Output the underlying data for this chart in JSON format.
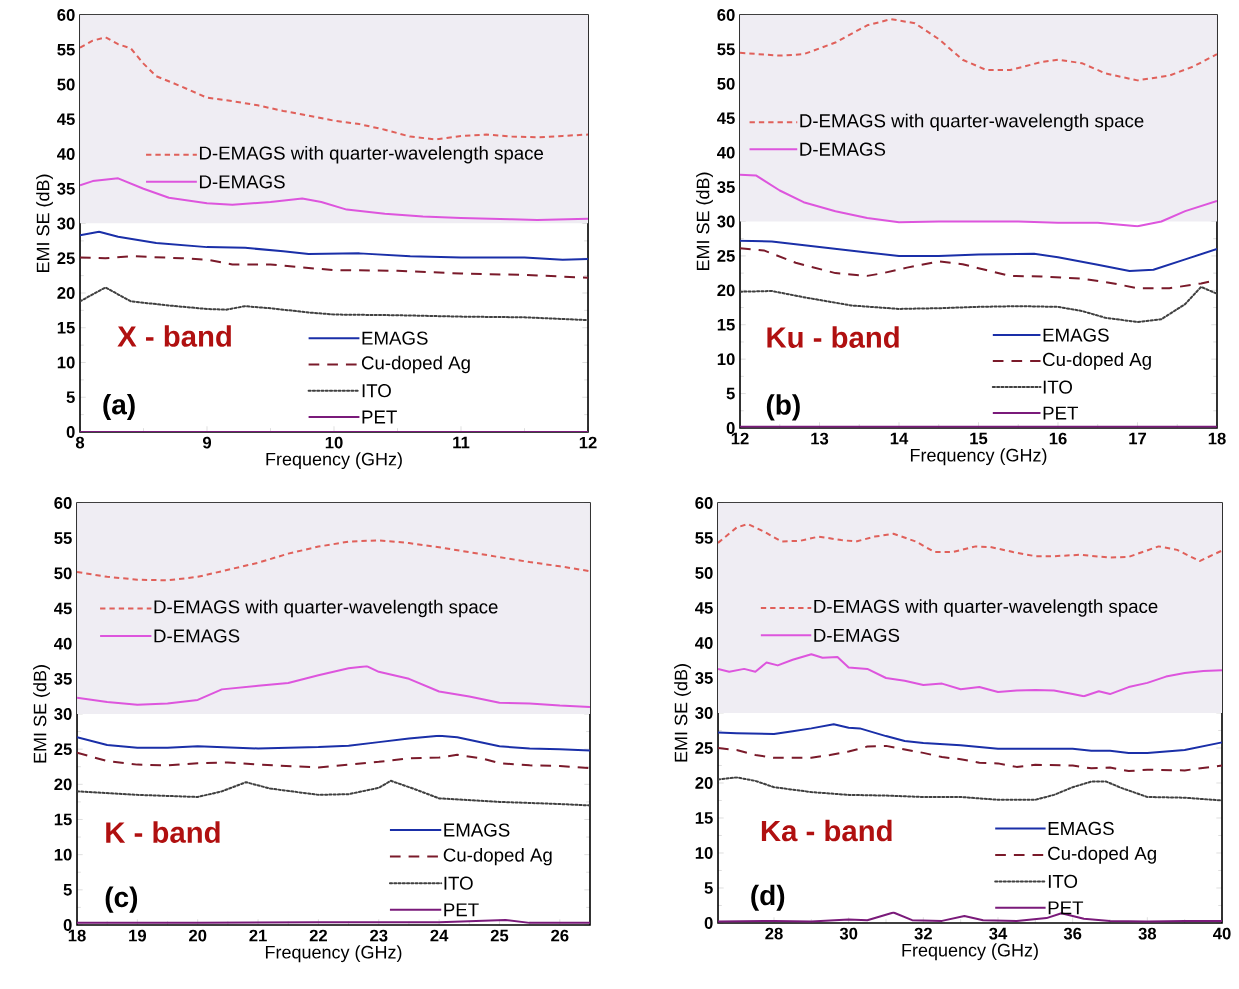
{
  "chart_data": [
    {
      "type": "line",
      "xlabel": "Frequency (GHz)",
      "ylabel": "EMI SE (dB)",
      "xlim": [
        8,
        12
      ],
      "ylim": [
        0,
        60
      ],
      "xticks": [
        8,
        9,
        10,
        11,
        12
      ],
      "yticks": [
        0,
        5,
        10,
        15,
        20,
        25,
        30,
        35,
        40,
        45,
        50,
        55,
        60
      ],
      "bands": [
        {
          "axis": "y",
          "from": 30,
          "to": 60,
          "color": "#efedf3"
        }
      ],
      "annotations": [
        "X - band",
        "(a)"
      ],
      "legend": "bottom right",
      "series": [
        {
          "name": "D-EMAGS with quarter-wavelength space",
          "color": "#e0605a",
          "line_style": "dashed",
          "x": [
            8,
            8.1,
            8.2,
            8.3,
            8.4,
            8.5,
            8.6,
            8.8,
            9.0,
            9.2,
            9.4,
            9.6,
            9.8,
            10,
            10.2,
            10.4,
            10.6,
            10.8,
            11,
            11.2,
            11.4,
            11.6,
            11.8,
            12
          ],
          "values": [
            55.3,
            56.3,
            56.8,
            55.8,
            55.2,
            53,
            51.2,
            49.7,
            48.1,
            47.6,
            47,
            46.2,
            45.5,
            44.8,
            44.3,
            43.5,
            42.5,
            42.1,
            42.6,
            42.8,
            42.5,
            42.4,
            42.6,
            42.8
          ]
        },
        {
          "name": "D-EMAGS",
          "color": "#dd55dd",
          "line_style": "solid",
          "x": [
            8,
            8.1,
            8.3,
            8.5,
            8.7,
            9,
            9.2,
            9.5,
            9.75,
            9.9,
            10.1,
            10.4,
            10.7,
            11,
            11.4,
            11.6,
            12
          ],
          "values": [
            35.5,
            36.1,
            36.5,
            35,
            33.7,
            32.9,
            32.7,
            33.1,
            33.6,
            33.1,
            32,
            31.4,
            31,
            30.8,
            30.6,
            30.5,
            30.7
          ]
        },
        {
          "name": "EMAGS",
          "color": "#1a2fa8",
          "line_style": "solid",
          "x": [
            8,
            8.15,
            8.3,
            8.6,
            9,
            9.3,
            9.6,
            9.8,
            10.2,
            10.6,
            11,
            11.5,
            11.8,
            12
          ],
          "values": [
            28.3,
            28.8,
            28.1,
            27.2,
            26.6,
            26.5,
            26,
            25.6,
            25.7,
            25.3,
            25.1,
            25.1,
            24.8,
            24.9
          ]
        },
        {
          "name": "Cu-doped Ag",
          "color": "#7a1a2a",
          "line_style": "dashed",
          "x": [
            8,
            8.2,
            8.4,
            8.8,
            9,
            9.2,
            9.5,
            9.8,
            10,
            10.5,
            11,
            11.5,
            12
          ],
          "values": [
            25.1,
            25,
            25.3,
            25,
            24.8,
            24.1,
            24.1,
            23.6,
            23.3,
            23.2,
            22.8,
            22.6,
            22.2
          ]
        },
        {
          "name": "ITO",
          "color": "#404040",
          "line_style": "dotted",
          "x": [
            8,
            8.1,
            8.2,
            8.3,
            8.4,
            8.7,
            9,
            9.15,
            9.3,
            9.5,
            9.8,
            10,
            10.5,
            11,
            11.5,
            12
          ],
          "values": [
            18.8,
            19.8,
            20.8,
            19.8,
            18.8,
            18.2,
            17.7,
            17.6,
            18.1,
            17.8,
            17.2,
            16.9,
            16.8,
            16.6,
            16.5,
            16.1
          ]
        },
        {
          "name": "PET",
          "color": "#7a1a7a",
          "line_style": "solid",
          "x": [
            8,
            9,
            10,
            11,
            12
          ],
          "values": [
            0,
            0,
            0,
            0,
            0
          ]
        }
      ]
    },
    {
      "type": "line",
      "xlabel": "Frequency (GHz)",
      "ylabel": "EMI SE (dB)",
      "xlim": [
        12,
        18
      ],
      "ylim": [
        0,
        60
      ],
      "xticks": [
        12,
        13,
        14,
        15,
        16,
        17,
        18
      ],
      "yticks": [
        0,
        5,
        10,
        15,
        20,
        25,
        30,
        35,
        40,
        45,
        50,
        55,
        60
      ],
      "bands": [
        {
          "axis": "y",
          "from": 30,
          "to": 60,
          "color": "#efedf3"
        }
      ],
      "annotations": [
        "Ku - band",
        "(b)"
      ],
      "legend": "bottom left",
      "series": [
        {
          "name": "D-EMAGS with quarter-wavelength space",
          "color": "#e0605a",
          "line_style": "dashed",
          "x": [
            12,
            12.5,
            12.8,
            13.2,
            13.6,
            13.9,
            14.2,
            14.5,
            14.8,
            15.1,
            15.4,
            15.8,
            16,
            16.3,
            16.6,
            17,
            17.4,
            17.7,
            18
          ],
          "values": [
            54.5,
            54.1,
            54.3,
            56,
            58.5,
            59.4,
            58.8,
            56.5,
            53.5,
            52,
            52,
            53.2,
            53.5,
            53,
            51.5,
            50.5,
            51.2,
            52.5,
            54.3
          ]
        },
        {
          "name": "D-EMAGS",
          "color": "#dd55dd",
          "line_style": "solid",
          "x": [
            12,
            12.2,
            12.5,
            12.8,
            13.2,
            13.6,
            14,
            14.5,
            15,
            15.5,
            16,
            16.5,
            17,
            17.3,
            17.6,
            18
          ],
          "values": [
            36.8,
            36.7,
            34.5,
            32.8,
            31.5,
            30.5,
            29.9,
            30,
            30,
            30,
            29.8,
            29.8,
            29.3,
            30,
            31.5,
            33
          ]
        },
        {
          "name": "EMAGS",
          "color": "#1a2fa8",
          "line_style": "solid",
          "x": [
            12,
            12.4,
            13,
            13.6,
            14,
            14.5,
            15,
            15.7,
            16,
            16.5,
            16.9,
            17.2,
            17.6,
            18
          ],
          "values": [
            27.2,
            27.1,
            26.3,
            25.5,
            25,
            25,
            25.2,
            25.3,
            24.8,
            23.7,
            22.8,
            23,
            24.5,
            26
          ]
        },
        {
          "name": "Cu-doped Ag",
          "color": "#7a1a2a",
          "line_style": "dashed",
          "x": [
            12,
            12.3,
            12.7,
            13.2,
            13.6,
            13.8,
            14.1,
            14.5,
            14.8,
            15,
            15.4,
            15.8,
            16.3,
            16.7,
            17,
            17.4,
            17.8,
            18
          ],
          "values": [
            26.1,
            25.8,
            24,
            22.5,
            22.1,
            22.5,
            23.3,
            24.2,
            23.8,
            23.2,
            22.1,
            22,
            21.7,
            21,
            20.3,
            20.3,
            21,
            21.5
          ]
        },
        {
          "name": "ITO",
          "color": "#404040",
          "line_style": "dotted",
          "x": [
            12,
            12.4,
            12.8,
            13.4,
            14,
            14.5,
            15,
            15.5,
            16,
            16.3,
            16.6,
            17,
            17.3,
            17.6,
            17.8,
            18
          ],
          "values": [
            19.8,
            19.9,
            19,
            17.8,
            17.3,
            17.4,
            17.6,
            17.7,
            17.6,
            17,
            16,
            15.4,
            15.8,
            18,
            20.5,
            19.5
          ]
        },
        {
          "name": "PET",
          "color": "#7a1a7a",
          "line_style": "solid",
          "x": [
            12,
            14,
            16,
            18
          ],
          "values": [
            0.2,
            0.2,
            0.2,
            0.2
          ]
        }
      ]
    },
    {
      "type": "line",
      "xlabel": "Frequency (GHz)",
      "ylabel": "EMI SE (dB)",
      "xlim": [
        18,
        26.5
      ],
      "ylim": [
        0,
        60
      ],
      "xticks": [
        18,
        19,
        20,
        21,
        22,
        23,
        24,
        25,
        26
      ],
      "yticks": [
        0,
        5,
        10,
        15,
        20,
        25,
        30,
        35,
        40,
        45,
        50,
        55,
        60
      ],
      "bands": [
        {
          "axis": "y",
          "from": 30,
          "to": 60,
          "color": "#efedf3"
        }
      ],
      "annotations": [
        "K - band",
        "(c)"
      ],
      "legend": "bottom right",
      "series": [
        {
          "name": "D-EMAGS with quarter-wavelength space",
          "color": "#e0605a",
          "line_style": "dashed",
          "x": [
            18,
            18.5,
            19,
            19.5,
            20,
            20.5,
            21,
            21.5,
            22,
            22.5,
            23,
            23.5,
            24,
            24.5,
            25,
            25.5,
            26,
            26.5
          ],
          "values": [
            50.2,
            49.5,
            49.1,
            49,
            49.5,
            50.5,
            51.5,
            52.8,
            53.8,
            54.5,
            54.7,
            54.3,
            53.7,
            53,
            52.3,
            51.6,
            51,
            50.3
          ]
        },
        {
          "name": "D-EMAGS",
          "color": "#dd55dd",
          "line_style": "solid",
          "x": [
            18,
            18.5,
            19,
            19.5,
            20,
            20.4,
            21,
            21.5,
            22,
            22.5,
            22.8,
            23,
            23.5,
            24,
            24.5,
            25,
            25.5,
            26,
            26.5
          ],
          "values": [
            32.3,
            31.7,
            31.3,
            31.5,
            32,
            33.5,
            34,
            34.4,
            35.5,
            36.5,
            36.8,
            36,
            35,
            33.2,
            32.5,
            31.6,
            31.5,
            31.2,
            31
          ]
        },
        {
          "name": "EMAGS",
          "color": "#1a2fa8",
          "line_style": "solid",
          "x": [
            18,
            18.5,
            19,
            19.5,
            20,
            21,
            22,
            22.5,
            23,
            23.5,
            24,
            24.3,
            25,
            25.5,
            26,
            26.5
          ],
          "values": [
            26.7,
            25.6,
            25.2,
            25.2,
            25.4,
            25.1,
            25.3,
            25.5,
            26,
            26.5,
            26.9,
            26.7,
            25.4,
            25.1,
            25,
            24.8
          ]
        },
        {
          "name": "Cu-doped Ag",
          "color": "#7a1a2a",
          "line_style": "dashed",
          "x": [
            18,
            18.5,
            19,
            19.5,
            20,
            20.5,
            21,
            22,
            22.5,
            23,
            23.5,
            24,
            24.3,
            24.7,
            25,
            25.5,
            26,
            26.5
          ],
          "values": [
            24.5,
            23.3,
            22.8,
            22.7,
            23,
            23.1,
            22.8,
            22.4,
            22.8,
            23.2,
            23.7,
            23.8,
            24.2,
            23.7,
            23,
            22.7,
            22.6,
            22.3
          ]
        },
        {
          "name": "ITO",
          "color": "#404040",
          "line_style": "dotted",
          "x": [
            18,
            19,
            20,
            20.4,
            20.8,
            21.2,
            22,
            22.5,
            23,
            23.2,
            23.6,
            24,
            25,
            26,
            26.5
          ],
          "values": [
            19,
            18.5,
            18.2,
            19,
            20.3,
            19.4,
            18.5,
            18.6,
            19.5,
            20.5,
            19.3,
            18,
            17.5,
            17.2,
            17
          ]
        },
        {
          "name": "PET",
          "color": "#7a1a7a",
          "line_style": "solid",
          "x": [
            18,
            20,
            22,
            23,
            24,
            25.1,
            25.5,
            26.5
          ],
          "values": [
            0.3,
            0.3,
            0.4,
            0.4,
            0.4,
            0.7,
            0.3,
            0.3
          ]
        }
      ]
    },
    {
      "type": "line",
      "xlabel": "Frequency (GHz)",
      "ylabel": "EMI SE (dB)",
      "xlim": [
        26.5,
        40
      ],
      "ylim": [
        0,
        60
      ],
      "xticks": [
        28,
        30,
        32,
        34,
        36,
        38,
        40
      ],
      "yticks": [
        0,
        5,
        10,
        15,
        20,
        25,
        30,
        35,
        40,
        45,
        50,
        55,
        60
      ],
      "bands": [
        {
          "axis": "y",
          "from": 30,
          "to": 60,
          "color": "#efedf3"
        }
      ],
      "annotations": [
        "Ka - band",
        "(d)"
      ],
      "legend": "bottom right",
      "series": [
        {
          "name": "D-EMAGS with quarter-wavelength space",
          "color": "#e0605a",
          "line_style": "dashed",
          "x": [
            26.5,
            27,
            27.3,
            27.7,
            28.2,
            28.7,
            29.2,
            29.8,
            30.2,
            30.7,
            31.2,
            31.8,
            32.3,
            32.8,
            33.4,
            33.8,
            34.4,
            35,
            35.5,
            36.2,
            37,
            37.5,
            38.3,
            38.8,
            39.4,
            40
          ],
          "values": [
            54.3,
            56.5,
            57,
            56,
            54.5,
            54.6,
            55.2,
            54.7,
            54.5,
            55.2,
            55.6,
            54.5,
            53,
            53,
            53.8,
            53.7,
            53,
            52.4,
            52.4,
            52.6,
            52.2,
            52.3,
            53.8,
            53.3,
            51.7,
            53.2
          ]
        },
        {
          "name": "D-EMAGS",
          "color": "#dd55dd",
          "line_style": "solid",
          "x": [
            26.5,
            26.8,
            27.2,
            27.5,
            27.8,
            28.1,
            28.5,
            29,
            29.3,
            29.7,
            30,
            30.5,
            31,
            31.5,
            32,
            32.5,
            33,
            33.5,
            34,
            34.5,
            35,
            35.5,
            36,
            36.3,
            36.7,
            37,
            37.5,
            38,
            38.5,
            39,
            39.5,
            40
          ],
          "values": [
            36.3,
            35.9,
            36.3,
            35.9,
            37.2,
            36.8,
            37.6,
            38.4,
            37.9,
            38,
            36.5,
            36.3,
            35,
            34.6,
            34,
            34.2,
            33.4,
            33.7,
            33,
            33.2,
            33.3,
            33.2,
            32.7,
            32.4,
            33.1,
            32.7,
            33.7,
            34.3,
            35.2,
            35.7,
            36,
            36.1
          ]
        },
        {
          "name": "EMAGS",
          "color": "#1a2fa8",
          "line_style": "solid",
          "x": [
            26.5,
            27,
            28,
            28.5,
            29,
            29.6,
            30,
            30.3,
            31,
            31.5,
            32,
            33,
            34,
            35,
            36,
            36.5,
            37,
            37.5,
            38,
            39,
            40
          ],
          "values": [
            27.2,
            27.1,
            27,
            27.4,
            27.8,
            28.4,
            27.9,
            27.8,
            26.7,
            26,
            25.7,
            25.4,
            24.9,
            24.9,
            24.9,
            24.6,
            24.6,
            24.3,
            24.3,
            24.7,
            25.8
          ]
        },
        {
          "name": "Cu-doped Ag",
          "color": "#7a1a2a",
          "line_style": "dashed",
          "x": [
            26.5,
            27,
            27.5,
            28,
            29,
            29.5,
            30,
            30.5,
            31,
            32,
            32.5,
            33,
            33.5,
            34,
            34.5,
            35,
            36,
            36.5,
            37,
            37.5,
            38,
            39,
            40
          ],
          "values": [
            25,
            24.7,
            24,
            23.6,
            23.6,
            24,
            24.5,
            25.2,
            25.3,
            24.3,
            23.7,
            23.4,
            22.9,
            22.8,
            22.3,
            22.6,
            22.5,
            22.1,
            22.2,
            21.7,
            21.9,
            21.8,
            22.5
          ]
        },
        {
          "name": "ITO",
          "color": "#404040",
          "line_style": "dotted",
          "x": [
            26.5,
            27,
            27.5,
            28,
            29,
            30,
            31,
            32,
            33,
            34,
            35,
            35.5,
            36,
            36.5,
            36.9,
            37.3,
            38,
            39,
            40
          ],
          "values": [
            20.5,
            20.8,
            20.3,
            19.4,
            18.7,
            18.3,
            18.2,
            18,
            18,
            17.6,
            17.6,
            18.3,
            19.4,
            20.2,
            20.2,
            19.3,
            18,
            17.9,
            17.5
          ]
        },
        {
          "name": "PET",
          "color": "#7a1a7a",
          "line_style": "solid",
          "x": [
            26.5,
            28,
            29,
            30,
            30.5,
            31.2,
            31.7,
            32.5,
            33.1,
            33.6,
            34.5,
            35.3,
            35.7,
            36.3,
            37,
            38,
            39,
            40
          ],
          "values": [
            0.2,
            0.3,
            0.2,
            0.5,
            0.4,
            1.5,
            0.4,
            0.3,
            1.0,
            0.4,
            0.3,
            0.7,
            1.4,
            0.6,
            0.3,
            0.2,
            0.3,
            0.3
          ]
        }
      ]
    }
  ]
}
